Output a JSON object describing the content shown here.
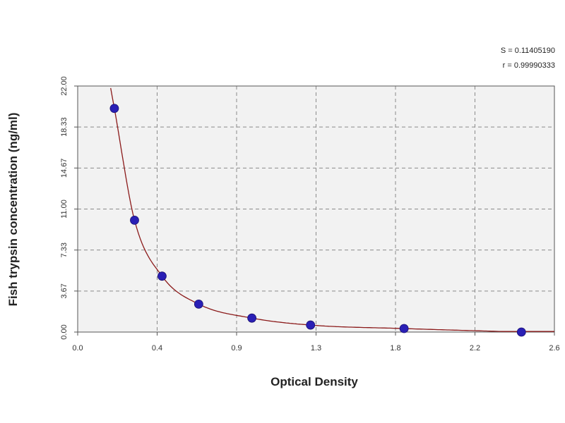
{
  "chart_data": {
    "type": "scatter",
    "title": "",
    "xlabel": "Optical Density",
    "ylabel": "Fish trypsin concentration (ng/ml)",
    "xlim": [
      0,
      2.6
    ],
    "ylim": [
      0,
      22
    ],
    "x_ticks": [
      "0.0",
      "0.4",
      "0.9",
      "1.3",
      "1.8",
      "2.2",
      "2.6"
    ],
    "y_ticks": [
      "0.00",
      "3.67",
      "7.33",
      "11.00",
      "14.67",
      "18.33",
      "22.00"
    ],
    "grid": true,
    "stats": [
      "S = 0.11405190",
      "r = 0.99990333"
    ],
    "series": [
      {
        "points": [
          {
            "x": 0.2,
            "y": 20.0
          },
          {
            "x": 0.31,
            "y": 10.0
          },
          {
            "x": 0.46,
            "y": 5.0
          },
          {
            "x": 0.66,
            "y": 2.5
          },
          {
            "x": 0.95,
            "y": 1.25
          },
          {
            "x": 1.27,
            "y": 0.625
          },
          {
            "x": 1.78,
            "y": 0.313
          },
          {
            "x": 2.42,
            "y": 0.0
          }
        ],
        "marker_color": "#2a1fb5",
        "line_color": "#8b1a1a"
      }
    ]
  }
}
